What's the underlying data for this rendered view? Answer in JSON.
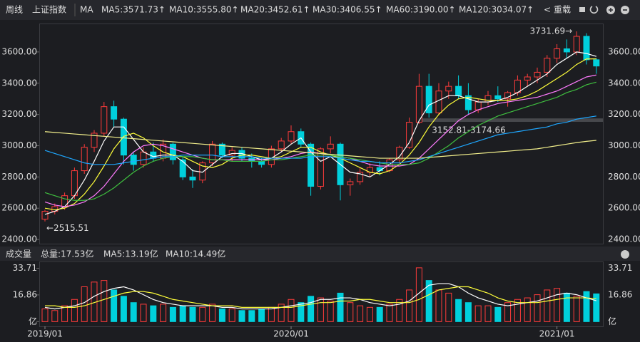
{
  "toolbar": {
    "period": "周线",
    "index": "上证指数",
    "indicator": "MA",
    "reload": "重载"
  },
  "chart_data": [
    {
      "type": "candlestick",
      "categories": [
        "2019/01",
        null,
        null,
        null,
        null,
        null,
        null,
        null,
        null,
        null,
        null,
        null,
        null,
        null,
        null,
        null,
        null,
        null,
        null,
        null,
        null,
        null,
        null,
        null,
        null,
        "2020/01",
        null,
        null,
        null,
        null,
        null,
        null,
        null,
        null,
        null,
        null,
        null,
        null,
        null,
        null,
        null,
        null,
        null,
        null,
        null,
        null,
        null,
        null,
        null,
        null,
        null,
        null,
        "2021/01",
        null,
        null,
        null,
        null
      ],
      "open": [
        2530,
        2580,
        2610,
        2680,
        2840,
        2990,
        3080,
        3250,
        3170,
        2940,
        2880,
        2960,
        2920,
        3010,
        2910,
        2800,
        2780,
        2890,
        3010,
        2940,
        2970,
        2920,
        2900,
        2880,
        2980,
        3030,
        3090,
        3010,
        2740,
        2980,
        3010,
        2750,
        2770,
        2830,
        2860,
        2840,
        2910,
        2990,
        3150,
        3380,
        3210,
        3350,
        3380,
        3320,
        3230,
        3280,
        3320,
        3300,
        3340,
        3420,
        3440,
        3470,
        3560,
        3620,
        3600,
        3700,
        3550
      ],
      "high": [
        2590,
        2630,
        2700,
        2860,
        3010,
        3100,
        3280,
        3288,
        3180,
        2960,
        2990,
        3020,
        3040,
        3020,
        2930,
        2850,
        2900,
        3030,
        3020,
        2990,
        2990,
        2950,
        2920,
        3000,
        3050,
        3130,
        3110,
        3020,
        2990,
        3060,
        3020,
        2790,
        2860,
        2890,
        2900,
        2920,
        3000,
        3180,
        3460,
        3460,
        3400,
        3410,
        3450,
        3400,
        3300,
        3350,
        3380,
        3350,
        3450,
        3460,
        3500,
        3580,
        3650,
        3680,
        3731.69,
        3720,
        3560
      ],
      "low": [
        2515.51,
        2560,
        2590,
        2660,
        2820,
        2960,
        3060,
        3120,
        2880,
        2840,
        2860,
        2900,
        2900,
        2880,
        2780,
        2730,
        2760,
        2870,
        2920,
        2900,
        2900,
        2860,
        2860,
        2860,
        2960,
        3010,
        2990,
        2680,
        2720,
        2950,
        2650,
        2680,
        2750,
        2800,
        2810,
        2830,
        2890,
        2980,
        3140,
        3180,
        3200,
        3300,
        3300,
        3200,
        3210,
        3260,
        3280,
        3250,
        3320,
        3380,
        3400,
        3440,
        3530,
        3560,
        3580,
        3520,
        3460
      ],
      "close": [
        2580,
        2610,
        2680,
        2840,
        2990,
        3080,
        3250,
        3170,
        2940,
        2880,
        2960,
        2920,
        3010,
        2910,
        2800,
        2780,
        2890,
        3010,
        2940,
        2970,
        2920,
        2900,
        2880,
        2980,
        3030,
        3090,
        3010,
        2740,
        2980,
        3010,
        2750,
        2770,
        2830,
        2860,
        2840,
        2910,
        2990,
        3150,
        3380,
        3210,
        3350,
        3380,
        3320,
        3230,
        3280,
        3320,
        3300,
        3340,
        3420,
        3440,
        3470,
        3560,
        3620,
        3600,
        3700,
        3550,
        3510
      ],
      "up_color": "#ff3b3b",
      "down_color": "#00d0dc",
      "ylim": [
        2373,
        3782
      ],
      "yticks": [
        {
          "value": 2400,
          "label": "2400.00"
        },
        {
          "value": 2600,
          "label": "2600.00"
        },
        {
          "value": 2800,
          "label": "2800.00"
        },
        {
          "value": 3000,
          "label": "3000.00"
        },
        {
          "value": 3200,
          "label": "3200.00"
        },
        {
          "value": 3400,
          "label": "3400.00"
        },
        {
          "value": 3600,
          "label": "3600.00"
        }
      ],
      "series": [
        {
          "name": "MA5:3571.73↑",
          "color": "#ffffff",
          "values": [
            2560,
            2580,
            2610,
            2680,
            2780,
            2900,
            3030,
            3120,
            3120,
            3040,
            2960,
            2930,
            2940,
            2940,
            2900,
            2840,
            2830,
            2880,
            2930,
            2950,
            2950,
            2930,
            2910,
            2920,
            2960,
            3010,
            3050,
            2960,
            2900,
            2930,
            2880,
            2830,
            2820,
            2800,
            2840,
            2880,
            2930,
            3020,
            3160,
            3260,
            3290,
            3320,
            3320,
            3300,
            3280,
            3280,
            3290,
            3310,
            3340,
            3380,
            3420,
            3460,
            3520,
            3560,
            3600,
            3590,
            3571.73
          ]
        },
        {
          "name": "MA10:3555.80↑",
          "color": "#ffff3a",
          "values": [
            2600,
            2590,
            2600,
            2630,
            2690,
            2770,
            2870,
            2980,
            3060,
            3080,
            3050,
            3000,
            2960,
            2940,
            2930,
            2900,
            2870,
            2860,
            2880,
            2920,
            2940,
            2940,
            2930,
            2920,
            2930,
            2960,
            2990,
            2990,
            2960,
            2940,
            2920,
            2890,
            2860,
            2830,
            2820,
            2840,
            2880,
            2940,
            3020,
            3120,
            3200,
            3260,
            3300,
            3310,
            3300,
            3290,
            3290,
            3290,
            3300,
            3320,
            3350,
            3390,
            3430,
            3470,
            3520,
            3555,
            3555.8
          ]
        },
        {
          "name": "MA20:3452.61↑",
          "color": "#ff7bff",
          "values": [
            2640,
            2620,
            2610,
            2620,
            2640,
            2680,
            2740,
            2820,
            2900,
            2960,
            3000,
            3010,
            3000,
            2980,
            2960,
            2940,
            2920,
            2910,
            2910,
            2910,
            2910,
            2910,
            2910,
            2910,
            2920,
            2930,
            2950,
            2960,
            2950,
            2940,
            2930,
            2920,
            2900,
            2880,
            2870,
            2870,
            2870,
            2880,
            2920,
            2980,
            3040,
            3100,
            3160,
            3200,
            3230,
            3250,
            3270,
            3280,
            3290,
            3300,
            3310,
            3330,
            3350,
            3380,
            3410,
            3440,
            3452.61
          ]
        },
        {
          "name": "MA30:3406.55↑",
          "color": "#3fbf3f",
          "values": [
            2700,
            2680,
            2660,
            2650,
            2650,
            2660,
            2690,
            2730,
            2780,
            2830,
            2870,
            2900,
            2920,
            2930,
            2930,
            2930,
            2920,
            2910,
            2910,
            2900,
            2900,
            2900,
            2900,
            2910,
            2910,
            2920,
            2930,
            2940,
            2940,
            2940,
            2930,
            2920,
            2910,
            2900,
            2890,
            2880,
            2880,
            2880,
            2890,
            2920,
            2960,
            3000,
            3050,
            3090,
            3130,
            3160,
            3190,
            3210,
            3230,
            3250,
            3270,
            3290,
            3310,
            3340,
            3360,
            3390,
            3406.55
          ]
        },
        {
          "name": "MA60:3190.00↑",
          "color": "#1ea7ff",
          "values": [
            2970,
            2950,
            2930,
            2910,
            2890,
            2880,
            2880,
            2880,
            2890,
            2900,
            2910,
            2920,
            2930,
            2930,
            2940,
            2940,
            2940,
            2940,
            2930,
            2930,
            2930,
            2930,
            2920,
            2920,
            2920,
            2920,
            2920,
            2930,
            2930,
            2930,
            2920,
            2910,
            2900,
            2900,
            2890,
            2890,
            2890,
            2900,
            2910,
            2930,
            2950,
            2970,
            2990,
            3010,
            3030,
            3050,
            3070,
            3080,
            3090,
            3100,
            3110,
            3120,
            3140,
            3150,
            3170,
            3180,
            3190.0
          ]
        },
        {
          "name": "MA120:3034.07↑",
          "color": "#f3f08c",
          "values": [
            3090,
            3085,
            3080,
            3075,
            3070,
            3065,
            3060,
            3055,
            3050,
            3045,
            3040,
            3035,
            3030,
            3025,
            3020,
            3015,
            3010,
            3005,
            3000,
            2995,
            2990,
            2985,
            2980,
            2975,
            2970,
            2965,
            2960,
            2955,
            2950,
            2945,
            2940,
            2935,
            2930,
            2925,
            2920,
            2920,
            2920,
            2920,
            2920,
            2925,
            2930,
            2935,
            2940,
            2945,
            2950,
            2955,
            2960,
            2965,
            2970,
            2975,
            2980,
            2990,
            3000,
            3010,
            3020,
            3028,
            3034.07
          ]
        }
      ],
      "annotations": [
        {
          "value": 3731.69,
          "label": "3731.69→"
        },
        {
          "value": 2515.51,
          "label": "←2515.51"
        }
      ],
      "band": {
        "value": [
          3152.81,
          3174.66
        ],
        "label": "3152.81-3174.66"
      }
    },
    {
      "type": "bar",
      "title": "成交量",
      "subtitle": "总量:17.53亿",
      "values": [
        8,
        7,
        10,
        14,
        22,
        25,
        26,
        20,
        16,
        12,
        11,
        10,
        11,
        9,
        10,
        9,
        9,
        11,
        8,
        8,
        7,
        7,
        8,
        9,
        11,
        14,
        12,
        16,
        15,
        13,
        18,
        12,
        10,
        9,
        9,
        11,
        14,
        20,
        34,
        26,
        20,
        18,
        14,
        12,
        10,
        10,
        9,
        12,
        14,
        15,
        17,
        20,
        21,
        18,
        16,
        19,
        17.53
      ],
      "ylim": [
        -3,
        38
      ],
      "yticks": [
        {
          "value": 0,
          "label": "亿"
        },
        16.86,
        33.71
      ],
      "series": [
        {
          "name": "MA5:13.19亿",
          "color": "#ffffff",
          "values": [
            9,
            8,
            9,
            10,
            12,
            16,
            19,
            21,
            22,
            20,
            17,
            14,
            12,
            11,
            10,
            10,
            10,
            10,
            9,
            9,
            8,
            8,
            8,
            8,
            9,
            10,
            11,
            12,
            14,
            14,
            15,
            15,
            14,
            12,
            11,
            10,
            11,
            13,
            18,
            23,
            24,
            24,
            22,
            18,
            15,
            13,
            11,
            10,
            11,
            12,
            13,
            15,
            17,
            18,
            17,
            15,
            13.19
          ]
        },
        {
          "name": "MA10:14.49亿",
          "color": "#ffff3a",
          "values": [
            10,
            10,
            9,
            9,
            10,
            12,
            14,
            16,
            18,
            19,
            19,
            18,
            16,
            14,
            13,
            12,
            11,
            10,
            10,
            10,
            9,
            9,
            9,
            9,
            9,
            9,
            10,
            11,
            12,
            12,
            13,
            13,
            14,
            14,
            13,
            12,
            12,
            12,
            14,
            17,
            20,
            21,
            22,
            22,
            20,
            18,
            15,
            13,
            12,
            12,
            12,
            13,
            14,
            15,
            15,
            15,
            14.49
          ]
        }
      ]
    }
  ]
}
